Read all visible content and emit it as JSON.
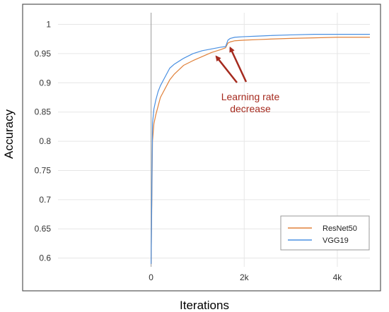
{
  "chart_data": {
    "type": "line",
    "xlabel": "Iterations",
    "ylabel": "Accuracy",
    "xlim": [
      -2000,
      4700
    ],
    "ylim": [
      0.585,
      1.02
    ],
    "x_ticks": [
      0,
      2000,
      4000
    ],
    "x_tick_labels": [
      "0",
      "2k",
      "4k"
    ],
    "y_ticks": [
      0.6,
      0.65,
      0.7,
      0.75,
      0.8,
      0.85,
      0.9,
      0.95,
      1.0
    ],
    "y_tick_labels": [
      "0.6",
      "0.65",
      "0.7",
      "0.75",
      "0.8",
      "0.85",
      "0.9",
      "0.95",
      "1"
    ],
    "grid": true,
    "legend_position": "bottom-right",
    "annotation": {
      "lines": [
        "Learning rate",
        "decrease"
      ],
      "color": "#a52a1e",
      "arrow_targets": [
        {
          "x": 1400,
          "y": 0.945
        },
        {
          "x": 1700,
          "y": 0.96
        }
      ]
    },
    "series": [
      {
        "name": "ResNet50",
        "color": "#e0813a",
        "x": [
          0,
          30,
          60,
          100,
          150,
          200,
          300,
          400,
          500,
          700,
          900,
          1100,
          1300,
          1500,
          1600,
          1650,
          1700,
          1800,
          2000,
          2300,
          2600,
          3000,
          3500,
          4000,
          4500,
          4700
        ],
        "y": [
          0.59,
          0.8,
          0.83,
          0.845,
          0.86,
          0.875,
          0.89,
          0.905,
          0.915,
          0.93,
          0.938,
          0.945,
          0.952,
          0.957,
          0.96,
          0.968,
          0.97,
          0.972,
          0.973,
          0.974,
          0.975,
          0.976,
          0.977,
          0.978,
          0.978,
          0.978
        ]
      },
      {
        "name": "VGG19",
        "color": "#4a90e2",
        "x": [
          0,
          30,
          60,
          100,
          150,
          200,
          300,
          400,
          500,
          700,
          900,
          1100,
          1300,
          1500,
          1600,
          1650,
          1700,
          1800,
          2000,
          2300,
          2600,
          3000,
          3500,
          4000,
          4500,
          4700
        ],
        "y": [
          0.59,
          0.83,
          0.855,
          0.87,
          0.885,
          0.895,
          0.91,
          0.925,
          0.932,
          0.942,
          0.95,
          0.955,
          0.958,
          0.961,
          0.962,
          0.973,
          0.976,
          0.978,
          0.979,
          0.98,
          0.981,
          0.982,
          0.983,
          0.983,
          0.983,
          0.983
        ]
      }
    ]
  }
}
